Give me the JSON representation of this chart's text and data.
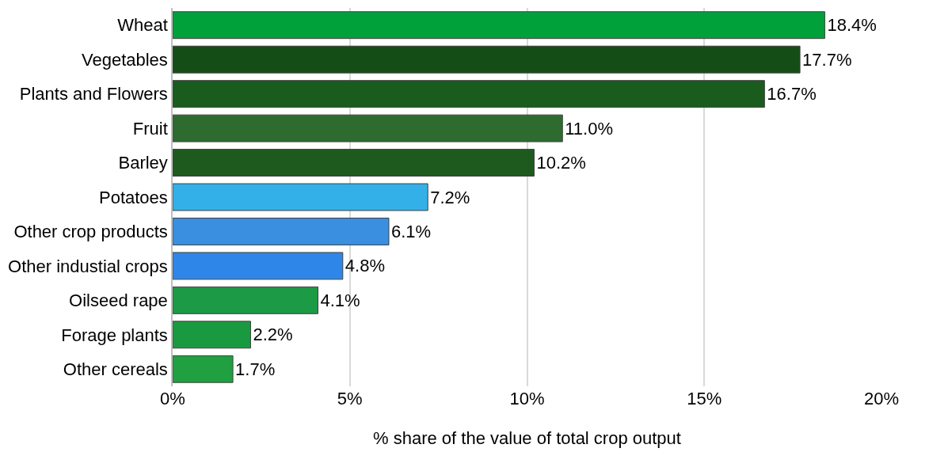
{
  "chart_data": {
    "type": "bar",
    "orientation": "horizontal",
    "xlabel": "% share of the value of total crop output",
    "categories": [
      "Wheat",
      "Vegetables",
      "Plants and Flowers",
      "Fruit",
      "Barley",
      "Potatoes",
      "Other crop products",
      "Other industial crops",
      "Oilseed rape",
      "Forage plants",
      "Other cereals"
    ],
    "values": [
      18.4,
      17.7,
      16.7,
      11.0,
      10.2,
      7.2,
      6.1,
      4.8,
      4.1,
      2.2,
      1.7
    ],
    "value_labels": [
      "18.4%",
      "17.7%",
      "16.7%",
      "11.0%",
      "10.2%",
      "7.2%",
      "6.1%",
      "4.8%",
      "4.1%",
      "2.2%",
      "1.7%"
    ],
    "colors": [
      "#00a13a",
      "#154d17",
      "#1a5c1e",
      "#2e6b2e",
      "#1e5a1e",
      "#33b0e8",
      "#3a8fe0",
      "#2e86e8",
      "#1c9a45",
      "#1a9a40",
      "#20a040"
    ],
    "xlim": [
      0,
      20
    ],
    "xticks": [
      {
        "value": 0,
        "label": "0%"
      },
      {
        "value": 5,
        "label": "5%"
      },
      {
        "value": 10,
        "label": "10%"
      },
      {
        "value": 15,
        "label": "15%"
      },
      {
        "value": 20,
        "label": "20%"
      }
    ],
    "grid": "x",
    "legend": false
  }
}
